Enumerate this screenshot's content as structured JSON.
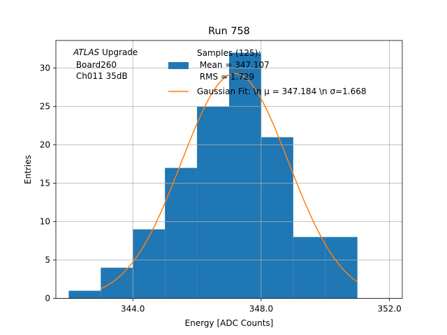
{
  "chart_data": {
    "type": "bar",
    "title": "Run 758",
    "xlabel": "Energy [ADC Counts]",
    "ylabel": "Entries",
    "xlim": [
      341.6,
      352.4
    ],
    "ylim": [
      0,
      33.6
    ],
    "grid": true,
    "x_ticks": [
      344,
      348,
      352
    ],
    "x_tick_labels": [
      "344.0",
      "348.0",
      "352.0"
    ],
    "y_ticks": [
      0,
      5,
      10,
      15,
      20,
      25,
      30
    ],
    "y_tick_labels": [
      "0",
      "5",
      "10",
      "15",
      "20",
      "25",
      "30"
    ],
    "histogram": {
      "bin_edges": [
        342,
        343,
        344,
        345,
        346,
        347,
        348,
        349,
        350,
        351
      ],
      "counts": [
        1,
        4,
        9,
        17,
        25,
        32,
        21,
        8,
        8
      ],
      "color": "#1f77b4"
    },
    "fit": {
      "type": "gaussian",
      "amplitude": 29.3,
      "mu": 347.184,
      "sigma": 1.668,
      "x_range": [
        343,
        351
      ],
      "color": "#ff7f0e"
    },
    "annotation": {
      "italic": "ATLAS",
      "rest": " Upgrade",
      "line2": " Board260",
      "line3": " Ch011 35dB"
    },
    "legend": {
      "position": "top-center",
      "hist_lines": [
        "Samples (125):",
        " Mean = 347.107",
        " RMS = 1.729"
      ],
      "fit_label": "Gaussian Fit: \\n μ = 347.184 \\n σ=1.668"
    }
  }
}
